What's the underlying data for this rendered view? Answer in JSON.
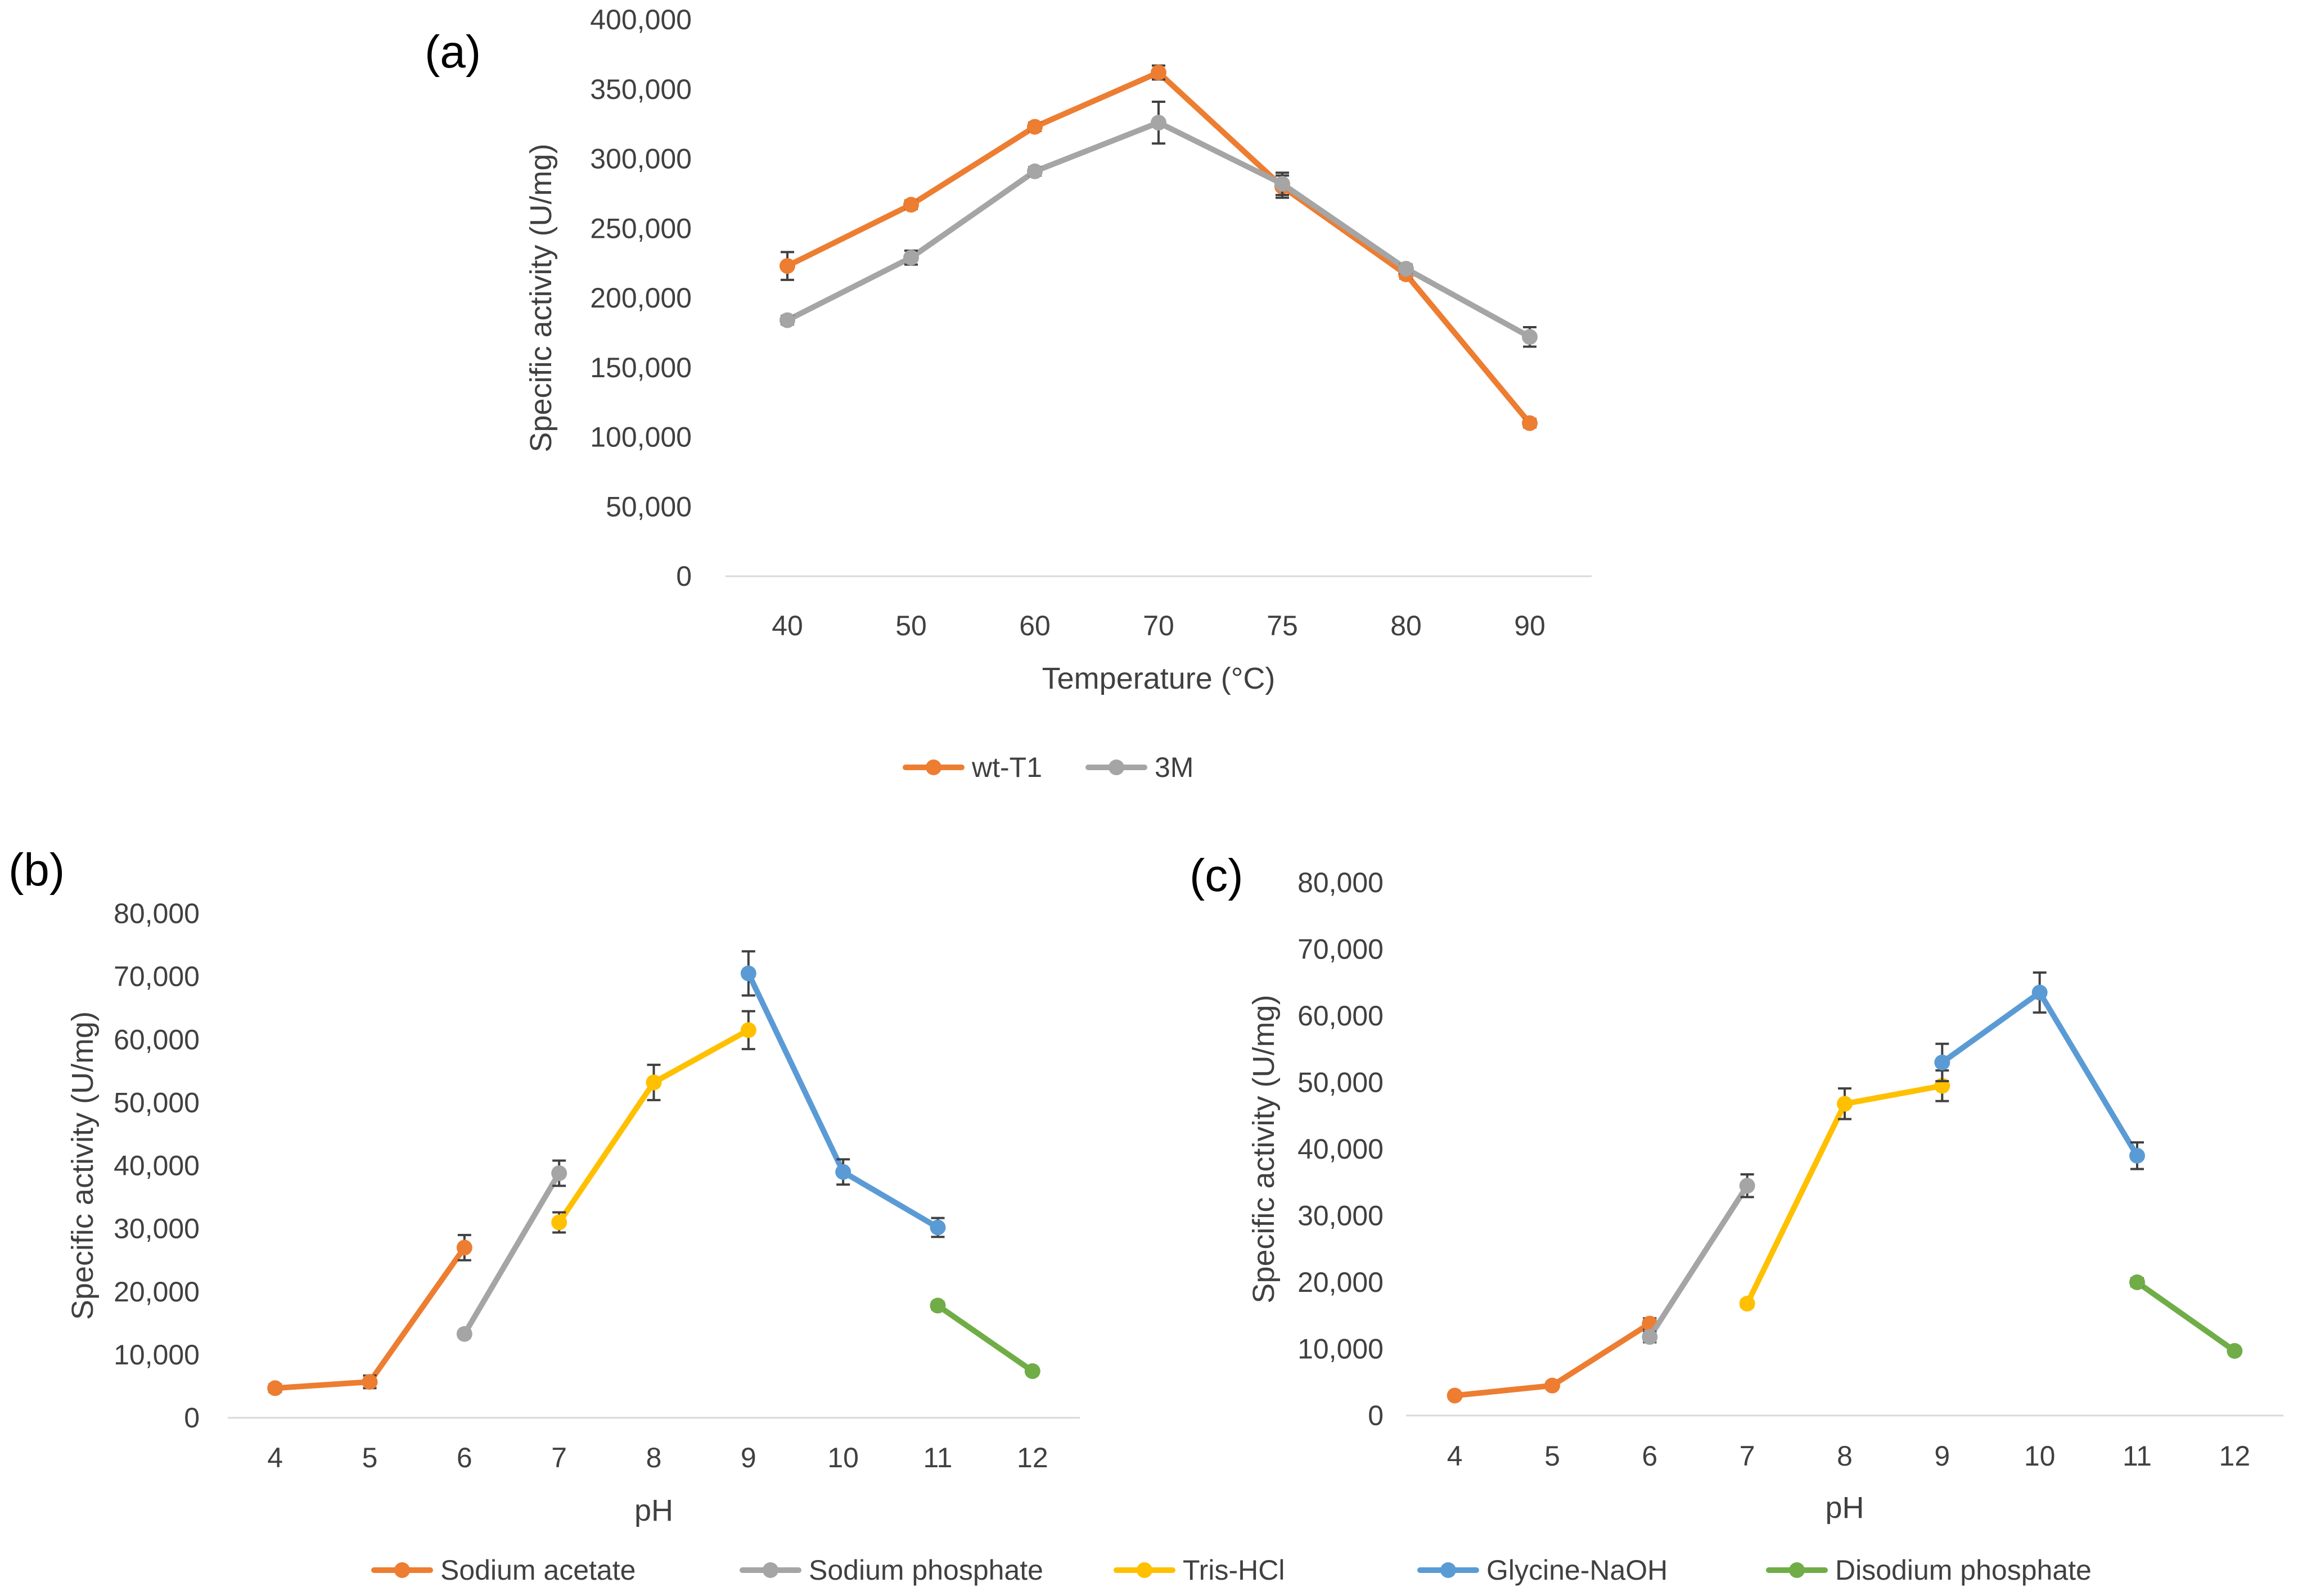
{
  "chart_data": [
    {
      "type": "line",
      "panel": "(a)",
      "title": "",
      "xlabel": "Temperature (°C)",
      "ylabel": "Specific activity (U/mg)",
      "categories": [
        "40",
        "50",
        "60",
        "70",
        "75",
        "80",
        "90"
      ],
      "ylim": [
        0,
        400000
      ],
      "yticks": [
        "0",
        "50,000",
        "100,000",
        "150,000",
        "200,000",
        "250,000",
        "300,000",
        "350,000",
        "400,000"
      ],
      "grid": false,
      "legend": "bottom",
      "series": [
        {
          "name": "wt-T1",
          "color": "#ED7D31",
          "values": [
            223000,
            267000,
            323000,
            362000,
            280000,
            217000,
            110000
          ],
          "errors": [
            10000,
            3000,
            3000,
            5000,
            8000,
            3000,
            3000
          ]
        },
        {
          "name": "3M",
          "color": "#A5A5A5",
          "values": [
            184000,
            229000,
            291000,
            326000,
            282000,
            221000,
            172000
          ],
          "errors": [
            3000,
            5000,
            3000,
            15000,
            8000,
            3000,
            7000
          ]
        }
      ]
    },
    {
      "type": "line",
      "panel": "(b)",
      "title": "",
      "xlabel": "pH",
      "ylabel": "Specific activity (U/mg)",
      "categories": [
        "4",
        "5",
        "6",
        "7",
        "8",
        "9",
        "10",
        "11",
        "12"
      ],
      "ylim": [
        0,
        80000
      ],
      "yticks": [
        "0",
        "10,000",
        "20,000",
        "30,000",
        "40,000",
        "50,000",
        "60,000",
        "70,000",
        "80,000"
      ],
      "grid": false,
      "legend": "bottom",
      "series": [
        {
          "name": "Sodium acetate",
          "color": "#ED7D31",
          "x": [
            4,
            5,
            6
          ],
          "values": [
            4700,
            5700,
            27000
          ],
          "errors": [
            600,
            1000,
            2000
          ]
        },
        {
          "name": "Sodium phosphate",
          "color": "#A5A5A5",
          "x": [
            6,
            7
          ],
          "values": [
            13300,
            38800
          ],
          "errors": [
            500,
            2000
          ]
        },
        {
          "name": "Tris-HCl",
          "color": "#FFC000",
          "x": [
            7,
            8,
            9
          ],
          "values": [
            31000,
            53200,
            61500
          ],
          "errors": [
            1600,
            2800,
            3000
          ]
        },
        {
          "name": "Glycine-NaOH",
          "color": "#5B9BD5",
          "x": [
            9,
            10,
            11
          ],
          "values": [
            70500,
            39000,
            30200
          ],
          "errors": [
            3500,
            2000,
            1500
          ]
        },
        {
          "name": "Disodium phosphate",
          "color": "#70AD47",
          "x": [
            11,
            12
          ],
          "values": [
            17800,
            7400
          ],
          "errors": [
            600,
            400
          ]
        }
      ]
    },
    {
      "type": "line",
      "panel": "(c)",
      "title": "",
      "xlabel": "pH",
      "ylabel": "Specific activity (U/mg)",
      "categories": [
        "4",
        "5",
        "6",
        "7",
        "8",
        "9",
        "10",
        "11",
        "12"
      ],
      "ylim": [
        0,
        80000
      ],
      "yticks": [
        "0",
        "10,000",
        "20,000",
        "30,000",
        "40,000",
        "50,000",
        "60,000",
        "70,000",
        "80,000"
      ],
      "grid": false,
      "legend": "bottom",
      "series": [
        {
          "name": "Sodium acetate",
          "color": "#ED7D31",
          "x": [
            4,
            5,
            6
          ],
          "values": [
            3000,
            4500,
            13800
          ],
          "errors": [
            300,
            500,
            800
          ]
        },
        {
          "name": "Sodium phosphate",
          "color": "#A5A5A5",
          "x": [
            6,
            7
          ],
          "values": [
            11800,
            34500
          ],
          "errors": [
            800,
            1700
          ]
        },
        {
          "name": "Tris-HCl",
          "color": "#FFC000",
          "x": [
            7,
            8,
            9
          ],
          "values": [
            16800,
            46800,
            49500
          ],
          "errors": [
            500,
            2300,
            2300
          ]
        },
        {
          "name": "Glycine-NaOH",
          "color": "#5B9BD5",
          "x": [
            9,
            10,
            11
          ],
          "values": [
            53000,
            63500,
            39000
          ],
          "errors": [
            2800,
            3000,
            2000
          ]
        },
        {
          "name": "Disodium phosphate",
          "color": "#70AD47",
          "x": [
            11,
            12
          ],
          "values": [
            20000,
            9700
          ],
          "errors": [
            600,
            400
          ]
        }
      ]
    }
  ],
  "legend_a": [
    {
      "name": "wt-T1",
      "color": "#ED7D31"
    },
    {
      "name": "3M",
      "color": "#A5A5A5"
    }
  ],
  "legend_bc": [
    {
      "name": "Sodium acetate",
      "color": "#ED7D31"
    },
    {
      "name": "Sodium phosphate",
      "color": "#A5A5A5"
    },
    {
      "name": "Tris-HCl",
      "color": "#FFC000"
    },
    {
      "name": "Glycine-NaOH",
      "color": "#5B9BD5"
    },
    {
      "name": "Disodium phosphate",
      "color": "#70AD47"
    }
  ]
}
